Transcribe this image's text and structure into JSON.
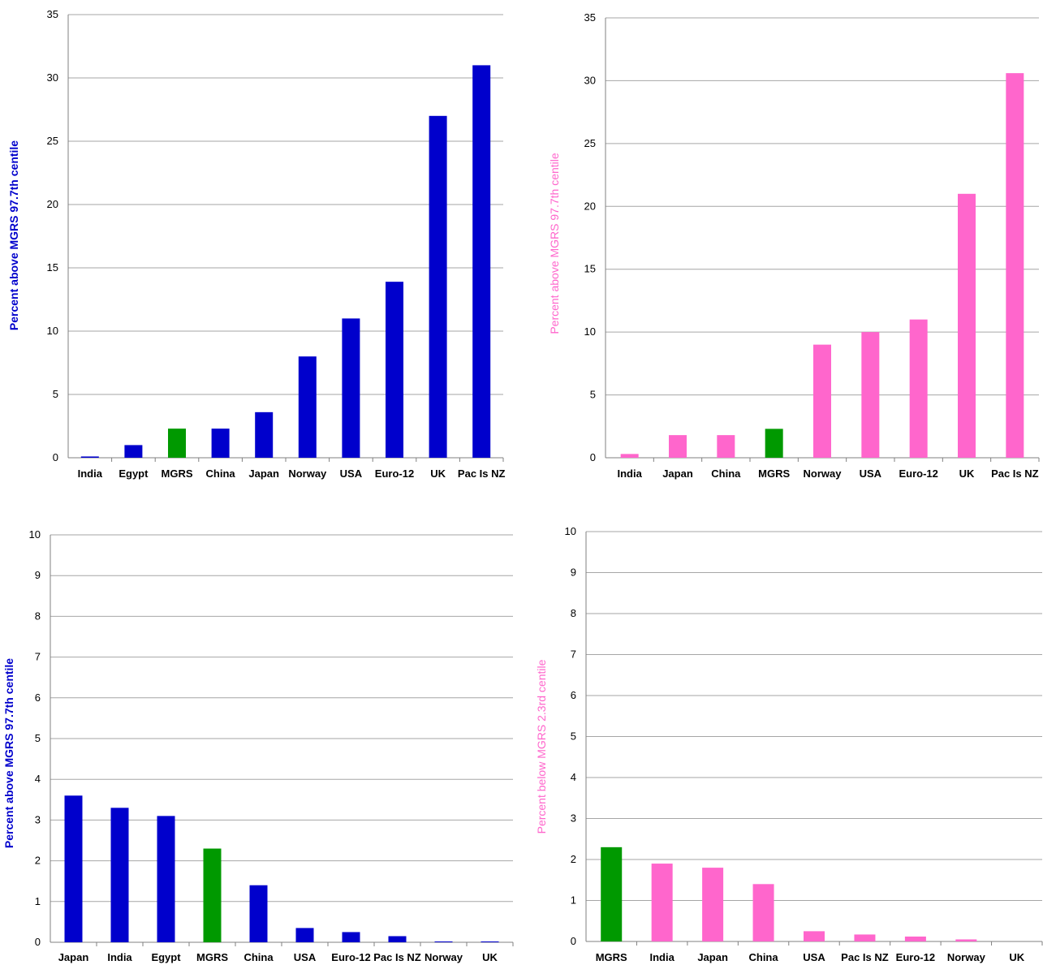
{
  "colors": {
    "blue": "#0000cc",
    "pink": "#ff66cc",
    "green": "#009900",
    "grid": "#a6a6a6",
    "axis": "#808080"
  },
  "chart_data": [
    {
      "type": "bar",
      "ylabel": "Percent above MGRS 97.7th centile",
      "ylabel_color": "#0000cc",
      "ylim": [
        0,
        35
      ],
      "yticks": [
        0,
        5,
        10,
        15,
        20,
        25,
        30,
        35
      ],
      "grid": true,
      "categories": [
        "India",
        "Egypt",
        "MGRS",
        "China",
        "Japan",
        "Norway",
        "USA",
        "Euro-12",
        "UK",
        "Pac Is NZ"
      ],
      "values": [
        0.1,
        1.0,
        2.3,
        2.3,
        3.6,
        8.0,
        11.0,
        13.9,
        27.0,
        31.0
      ],
      "bar_colors": [
        "#0000cc",
        "#0000cc",
        "#009900",
        "#0000cc",
        "#0000cc",
        "#0000cc",
        "#0000cc",
        "#0000cc",
        "#0000cc",
        "#0000cc"
      ]
    },
    {
      "type": "bar",
      "ylabel": "Percent above MGRS 97.7th centile",
      "ylabel_color": "#ff66cc",
      "ylim": [
        0,
        35
      ],
      "yticks": [
        0,
        5,
        10,
        15,
        20,
        25,
        30,
        35
      ],
      "grid": true,
      "categories": [
        "India",
        "Japan",
        "China",
        "MGRS",
        "Norway",
        "USA",
        "Euro-12",
        "UK",
        "Pac Is NZ"
      ],
      "values": [
        0.3,
        1.8,
        1.8,
        2.3,
        9.0,
        10.0,
        11.0,
        21.0,
        30.6
      ],
      "bar_colors": [
        "#ff66cc",
        "#ff66cc",
        "#ff66cc",
        "#009900",
        "#ff66cc",
        "#ff66cc",
        "#ff66cc",
        "#ff66cc",
        "#ff66cc"
      ]
    },
    {
      "type": "bar",
      "ylabel": "Percent above MGRS 97.7th centile",
      "ylabel_color": "#0000cc",
      "ylim": [
        0,
        10
      ],
      "yticks": [
        0,
        1,
        2,
        3,
        4,
        5,
        6,
        7,
        8,
        9,
        10
      ],
      "grid": true,
      "categories": [
        "Japan",
        "India",
        "Egypt",
        "MGRS",
        "China",
        "USA",
        "Euro-12",
        "Pac Is NZ",
        "Norway",
        "UK"
      ],
      "values": [
        3.6,
        3.3,
        3.1,
        2.3,
        1.4,
        0.35,
        0.25,
        0.15,
        0.02,
        0.02
      ],
      "bar_colors": [
        "#0000cc",
        "#0000cc",
        "#0000cc",
        "#009900",
        "#0000cc",
        "#0000cc",
        "#0000cc",
        "#0000cc",
        "#0000cc",
        "#0000cc"
      ]
    },
    {
      "type": "bar",
      "ylabel": "Percent below MGRS 2.3rd centile",
      "ylabel_color": "#ff66cc",
      "ylim": [
        0,
        10
      ],
      "yticks": [
        0,
        1,
        2,
        3,
        4,
        5,
        6,
        7,
        8,
        9,
        10
      ],
      "grid": true,
      "categories": [
        "MGRS",
        "India",
        "Japan",
        "China",
        "USA",
        "Pac Is NZ",
        "Euro-12",
        "Norway",
        "UK"
      ],
      "values": [
        2.3,
        1.9,
        1.8,
        1.4,
        0.25,
        0.17,
        0.12,
        0.05,
        0.0
      ],
      "bar_colors": [
        "#009900",
        "#ff66cc",
        "#ff66cc",
        "#ff66cc",
        "#ff66cc",
        "#ff66cc",
        "#ff66cc",
        "#ff66cc",
        "#ff66cc"
      ]
    }
  ]
}
